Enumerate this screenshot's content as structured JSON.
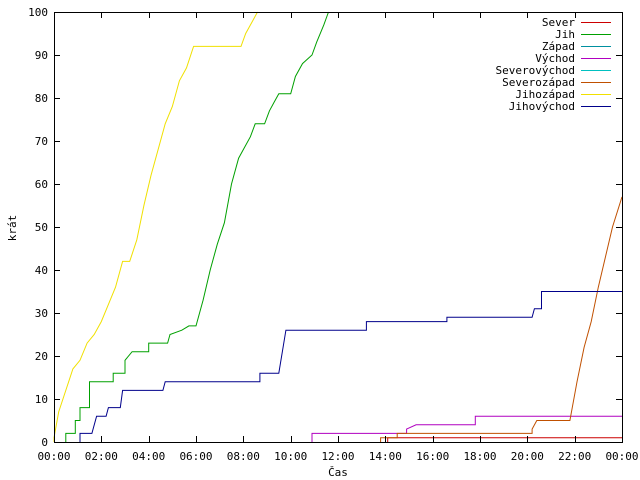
{
  "chart_data": {
    "type": "line",
    "xlabel": "Čas",
    "ylabel": "krát",
    "xlim": [
      0,
      24
    ],
    "ylim": [
      0,
      100
    ],
    "x_ticks": [
      {
        "value": 0,
        "label": "00:00"
      },
      {
        "value": 2,
        "label": "02:00"
      },
      {
        "value": 4,
        "label": "04:00"
      },
      {
        "value": 6,
        "label": "06:00"
      },
      {
        "value": 8,
        "label": "08:00"
      },
      {
        "value": 10,
        "label": "10:00"
      },
      {
        "value": 12,
        "label": "12:00"
      },
      {
        "value": 14,
        "label": "14:00"
      },
      {
        "value": 16,
        "label": "16:00"
      },
      {
        "value": 18,
        "label": "18:00"
      },
      {
        "value": 20,
        "label": "20:00"
      },
      {
        "value": 22,
        "label": "22:00"
      },
      {
        "value": 24,
        "label": "00:00"
      }
    ],
    "y_ticks": [
      0,
      10,
      20,
      30,
      40,
      50,
      60,
      70,
      80,
      90,
      100
    ],
    "grid": false,
    "legend_position": "top-right",
    "series": [
      {
        "name": "Sever",
        "color": "#cc0000",
        "points": [
          [
            14.1,
            0
          ],
          [
            14.1,
            1
          ],
          [
            24,
            1
          ]
        ]
      },
      {
        "name": "Jih",
        "color": "#00a000",
        "points": [
          [
            0.5,
            0
          ],
          [
            0.5,
            2
          ],
          [
            0.9,
            2
          ],
          [
            0.9,
            5
          ],
          [
            1.1,
            5
          ],
          [
            1.1,
            8
          ],
          [
            1.5,
            8
          ],
          [
            1.5,
            14
          ],
          [
            2.5,
            14
          ],
          [
            2.5,
            16
          ],
          [
            3.0,
            16
          ],
          [
            3.0,
            19
          ],
          [
            3.3,
            21
          ],
          [
            4.0,
            21
          ],
          [
            4.0,
            23
          ],
          [
            4.8,
            23
          ],
          [
            4.9,
            25
          ],
          [
            5.4,
            26
          ],
          [
            5.7,
            27
          ],
          [
            6.0,
            27
          ],
          [
            6.3,
            33
          ],
          [
            6.6,
            40
          ],
          [
            6.9,
            46
          ],
          [
            7.2,
            51
          ],
          [
            7.5,
            60
          ],
          [
            7.8,
            66
          ],
          [
            8.0,
            68
          ],
          [
            8.3,
            71
          ],
          [
            8.5,
            74
          ],
          [
            8.9,
            74
          ],
          [
            9.1,
            77
          ],
          [
            9.3,
            79
          ],
          [
            9.5,
            81
          ],
          [
            10.0,
            81
          ],
          [
            10.2,
            85
          ],
          [
            10.5,
            88
          ],
          [
            10.9,
            90
          ],
          [
            11.1,
            93
          ],
          [
            11.4,
            97
          ],
          [
            11.6,
            100
          ]
        ]
      },
      {
        "name": "Západ",
        "color": "#0090a0",
        "points": []
      },
      {
        "name": "Východ",
        "color": "#b000c0",
        "points": [
          [
            10.9,
            0
          ],
          [
            10.9,
            2
          ],
          [
            14.9,
            2
          ],
          [
            14.9,
            3
          ],
          [
            15.3,
            4
          ],
          [
            17.8,
            4
          ],
          [
            17.8,
            6
          ],
          [
            24,
            6
          ]
        ]
      },
      {
        "name": "Severovýchod",
        "color": "#00c0c0",
        "points": []
      },
      {
        "name": "Severozápad",
        "color": "#c05000",
        "points": [
          [
            13.8,
            0
          ],
          [
            13.8,
            1
          ],
          [
            14.5,
            1
          ],
          [
            14.5,
            2
          ],
          [
            20.2,
            2
          ],
          [
            20.2,
            3
          ],
          [
            20.4,
            5
          ],
          [
            21.8,
            5
          ],
          [
            22.1,
            14
          ],
          [
            22.4,
            22
          ],
          [
            22.7,
            28
          ],
          [
            23.0,
            36
          ],
          [
            23.3,
            43
          ],
          [
            23.6,
            50
          ],
          [
            24,
            57
          ]
        ]
      },
      {
        "name": "Jihozápad",
        "color": "#f0e000",
        "points": [
          [
            0,
            0
          ],
          [
            0,
            1
          ],
          [
            0.2,
            7
          ],
          [
            0.5,
            12
          ],
          [
            0.8,
            17
          ],
          [
            1.1,
            19
          ],
          [
            1.4,
            23
          ],
          [
            1.7,
            25
          ],
          [
            2.0,
            28
          ],
          [
            2.3,
            32
          ],
          [
            2.6,
            36
          ],
          [
            2.9,
            42
          ],
          [
            3.2,
            42
          ],
          [
            3.5,
            47
          ],
          [
            3.8,
            55
          ],
          [
            4.1,
            62
          ],
          [
            4.4,
            68
          ],
          [
            4.7,
            74
          ],
          [
            5.0,
            78
          ],
          [
            5.3,
            84
          ],
          [
            5.6,
            87
          ],
          [
            5.9,
            92
          ],
          [
            7.9,
            92
          ],
          [
            8.1,
            95
          ],
          [
            8.4,
            98
          ],
          [
            8.6,
            100
          ]
        ]
      },
      {
        "name": "Jihovýchod",
        "color": "#00008b",
        "points": [
          [
            1.1,
            0
          ],
          [
            1.1,
            2
          ],
          [
            1.6,
            2
          ],
          [
            1.8,
            6
          ],
          [
            2.2,
            6
          ],
          [
            2.3,
            8
          ],
          [
            2.8,
            8
          ],
          [
            2.9,
            12
          ],
          [
            4.6,
            12
          ],
          [
            4.7,
            14
          ],
          [
            8.7,
            14
          ],
          [
            8.7,
            16
          ],
          [
            9.5,
            16
          ],
          [
            9.8,
            26
          ],
          [
            13.2,
            26
          ],
          [
            13.2,
            28
          ],
          [
            16.6,
            28
          ],
          [
            16.6,
            29
          ],
          [
            20.2,
            29
          ],
          [
            20.3,
            31
          ],
          [
            20.6,
            31
          ],
          [
            20.6,
            35
          ],
          [
            24,
            35
          ]
        ]
      }
    ]
  }
}
